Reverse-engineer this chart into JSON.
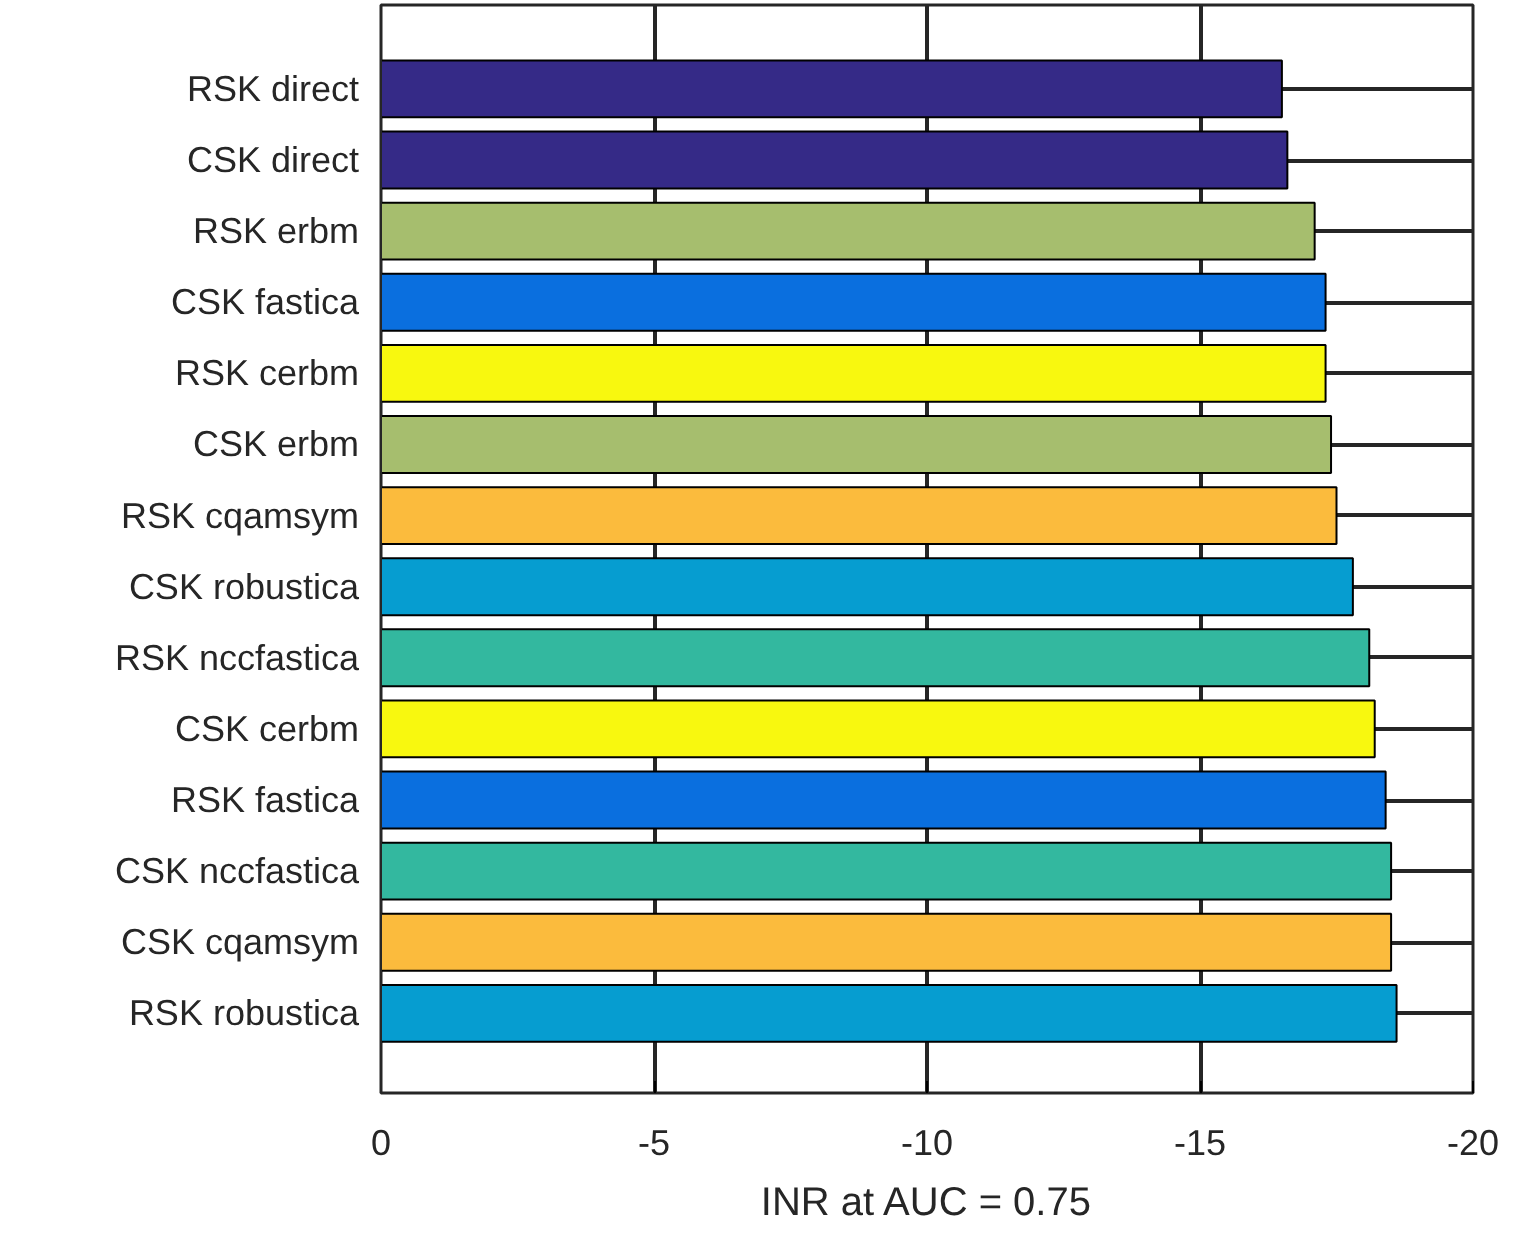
{
  "chart_data": {
    "type": "bar",
    "orientation": "horizontal",
    "xlabel": "INR at AUC = 0.75",
    "categories": [
      "RSK direct",
      "CSK direct",
      "RSK erbm",
      "CSK fastica",
      "RSK cerbm",
      "CSK erbm",
      "RSK cqamsym",
      "CSK robustica",
      "RSK nccfastica",
      "CSK cerbm",
      "RSK fastica",
      "CSK nccfastica",
      "CSK cqamsym",
      "RSK robustica"
    ],
    "values": [
      -16.5,
      -16.6,
      -17.1,
      -17.3,
      -17.3,
      -17.4,
      -17.5,
      -17.8,
      -18.1,
      -18.2,
      -18.4,
      -18.5,
      -18.5,
      -18.6
    ],
    "colors": [
      "#352a87",
      "#352a87",
      "#a6be6e",
      "#0a6fdf",
      "#f8f80f",
      "#a6be6e",
      "#fbbb3d",
      "#069dd0",
      "#33b89f",
      "#f8f80f",
      "#0a6fdf",
      "#33b89f",
      "#fbbb3d",
      "#069dd0"
    ],
    "xlim": [
      0,
      -20
    ],
    "xticks": [
      0,
      -5,
      -10,
      -15,
      -20
    ],
    "grid": true
  }
}
